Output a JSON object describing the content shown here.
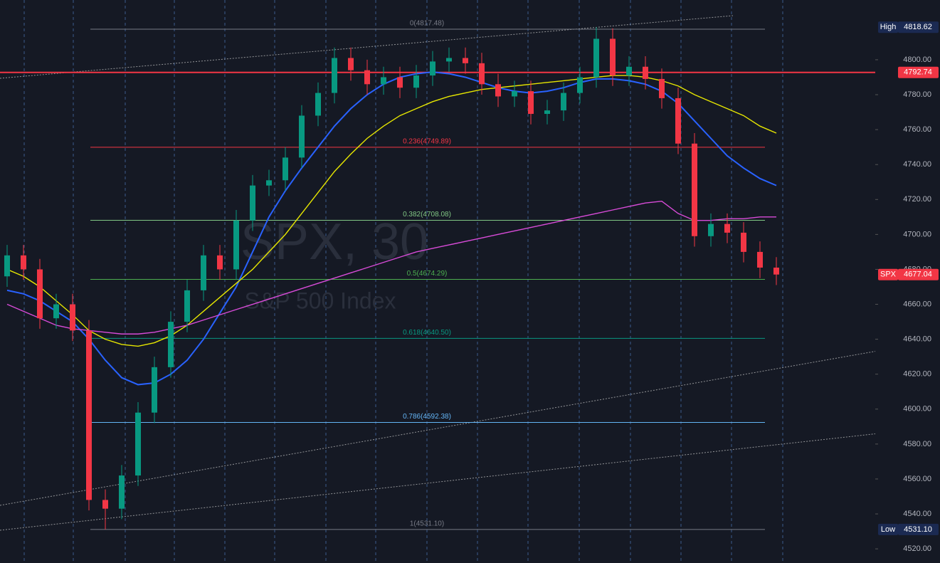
{
  "chart_data": {
    "type": "candlestick",
    "watermark": "SPX, 30",
    "watermark_subtitle": "S&P 500 Index",
    "ylim": [
      4511.9,
      4834.2
    ],
    "yticks": [
      {
        "value": 4520,
        "label": "4520.00"
      },
      {
        "value": 4540,
        "label": "4540.00"
      },
      {
        "value": 4560,
        "label": "4560.00"
      },
      {
        "value": 4580,
        "label": "4580.00"
      },
      {
        "value": 4600,
        "label": "4600.00"
      },
      {
        "value": 4620,
        "label": "4620.00"
      },
      {
        "value": 4640,
        "label": "4640.00"
      },
      {
        "value": 4660,
        "label": "4660.00"
      },
      {
        "value": 4680,
        "label": "4680.00"
      },
      {
        "value": 4700,
        "label": "4700.00"
      },
      {
        "value": 4720,
        "label": "4720.00"
      },
      {
        "value": 4740,
        "label": "4740.00"
      },
      {
        "value": 4760,
        "label": "4760.00"
      },
      {
        "value": 4780,
        "label": "4780.00"
      },
      {
        "value": 4800,
        "label": "4800.00"
      }
    ],
    "up_color": "#089981",
    "down_color": "#f23645",
    "open": [
      4676,
      4688,
      4680,
      4652,
      4660,
      4645,
      4548,
      4543,
      4562,
      4598,
      4624,
      4650,
      4668,
      4688,
      4680,
      4708,
      4728,
      4731,
      4744,
      4768,
      4781,
      4801,
      4794,
      4786,
      4790,
      4784,
      4791,
      4799,
      4801,
      4798,
      4786,
      4779,
      4782,
      4769,
      4771,
      4781,
      4790,
      4812,
      4791,
      4796,
      4789,
      4778,
      4752,
      4699,
      4706,
      4701,
      4690,
      4681
    ],
    "high": [
      4694,
      4694,
      4686,
      4666,
      4666,
      4651,
      4554,
      4568,
      4604,
      4630,
      4656,
      4674,
      4694,
      4694,
      4714,
      4734,
      4737,
      4750,
      4774,
      4787,
      4807,
      4807,
      4800,
      4796,
      4796,
      4797,
      4805,
      4807,
      4807,
      4804,
      4792,
      4788,
      4788,
      4777,
      4787,
      4796,
      4818.62,
      4818,
      4802,
      4802,
      4795,
      4784,
      4758,
      4712,
      4712,
      4707,
      4696,
      4687
    ],
    "low": [
      4670,
      4674,
      4646,
      4646,
      4639,
      4542,
      4531.1,
      4537,
      4556,
      4592,
      4618,
      4644,
      4662,
      4674,
      4674,
      4702,
      4722,
      4725,
      4738,
      4762,
      4775,
      4788,
      4780,
      4780,
      4778,
      4778,
      4785,
      4793,
      4792,
      4780,
      4773,
      4773,
      4763,
      4763,
      4765,
      4775,
      4784,
      4785,
      4785,
      4783,
      4772,
      4746,
      4693,
      4693,
      4695,
      4684,
      4675,
      4671
    ],
    "close": [
      4688,
      4680,
      4652,
      4660,
      4645,
      4548,
      4543,
      4562,
      4598,
      4624,
      4650,
      4668,
      4688,
      4680,
      4708,
      4728,
      4731,
      4744,
      4768,
      4781,
      4801,
      4794,
      4786,
      4790,
      4784,
      4791,
      4799,
      4801,
      4798,
      4786,
      4779,
      4782,
      4769,
      4771,
      4781,
      4790,
      4812,
      4791,
      4796,
      4789,
      4778,
      4752,
      4699,
      4706,
      4701,
      4690,
      4681,
      4677.04
    ],
    "lines": [
      {
        "color": "#2962ff",
        "values": [
          4668,
          4666,
          4662,
          4656,
          4650,
          4640,
          4628,
          4618,
          4614,
          4615,
          4620,
          4628,
          4640,
          4655,
          4670,
          4690,
          4710,
          4725,
          4738,
          4750,
          4762,
          4772,
          4780,
          4786,
          4790,
          4792,
          4793,
          4792,
          4790,
          4787,
          4784,
          4782,
          4781,
          4782,
          4784,
          4787,
          4789,
          4789,
          4788,
          4786,
          4782,
          4775,
          4765,
          4755,
          4745,
          4738,
          4732,
          4728
        ]
      },
      {
        "color": "#e6e600",
        "values": [
          4680,
          4676,
          4670,
          4662,
          4654,
          4645,
          4640,
          4637,
          4636,
          4638,
          4642,
          4648,
          4656,
          4664,
          4672,
          4680,
          4690,
          4700,
          4712,
          4724,
          4736,
          4746,
          4755,
          4762,
          4768,
          4772,
          4776,
          4779,
          4781,
          4783,
          4784,
          4785,
          4786,
          4787,
          4788,
          4789,
          4790,
          4791,
          4791,
          4790,
          4788,
          4785,
          4780,
          4776,
          4772,
          4768,
          4762,
          4758
        ]
      },
      {
        "color": "#d84bd8",
        "values": [
          4660,
          4656,
          4652,
          4648,
          4646,
          4645,
          4644,
          4643,
          4643,
          4644,
          4646,
          4648,
          4651,
          4654,
          4657,
          4660,
          4663,
          4666,
          4669,
          4672,
          4675,
          4678,
          4681,
          4684,
          4687,
          4690,
          4692,
          4694,
          4696,
          4698,
          4700,
          4702,
          4704,
          4706,
          4708,
          4710,
          4712,
          4714,
          4716,
          4718,
          4719,
          4712,
          4708,
          4708,
          4709,
          4709,
          4710,
          4710
        ]
      }
    ],
    "fib_levels": {
      "values": [
        4817.48,
        4749.89,
        4708.08,
        4674.29,
        4640.5,
        4592.38,
        4531.1
      ],
      "value_labels": [
        "0(4817.48)",
        "0.236(4749.89)",
        "0.382(4708.08)",
        "0.5(4674.29)",
        "0.618(4640.50)",
        "0.786(4592.38)",
        "1(4531.10)"
      ],
      "colors": [
        "#787b86",
        "#f23645",
        "#81c784",
        "#4caf50",
        "#089981",
        "#64b5f6",
        "#787b86"
      ]
    },
    "horizontal_line": {
      "value": 4792.74,
      "color": "#f23645"
    },
    "price_labels": [
      {
        "name": "High",
        "value": 4818.62,
        "label": "4818.62",
        "color": "#1b2a52"
      },
      {
        "value": 4792.74,
        "label": "4792.74",
        "color": "#f23645"
      },
      {
        "name": "SPX",
        "value": 4677.04,
        "label": "4677.04",
        "color": "#f23645"
      },
      {
        "name": "Low",
        "value": 4531.1,
        "label": "4531.10",
        "color": "#1b2a52"
      }
    ]
  }
}
